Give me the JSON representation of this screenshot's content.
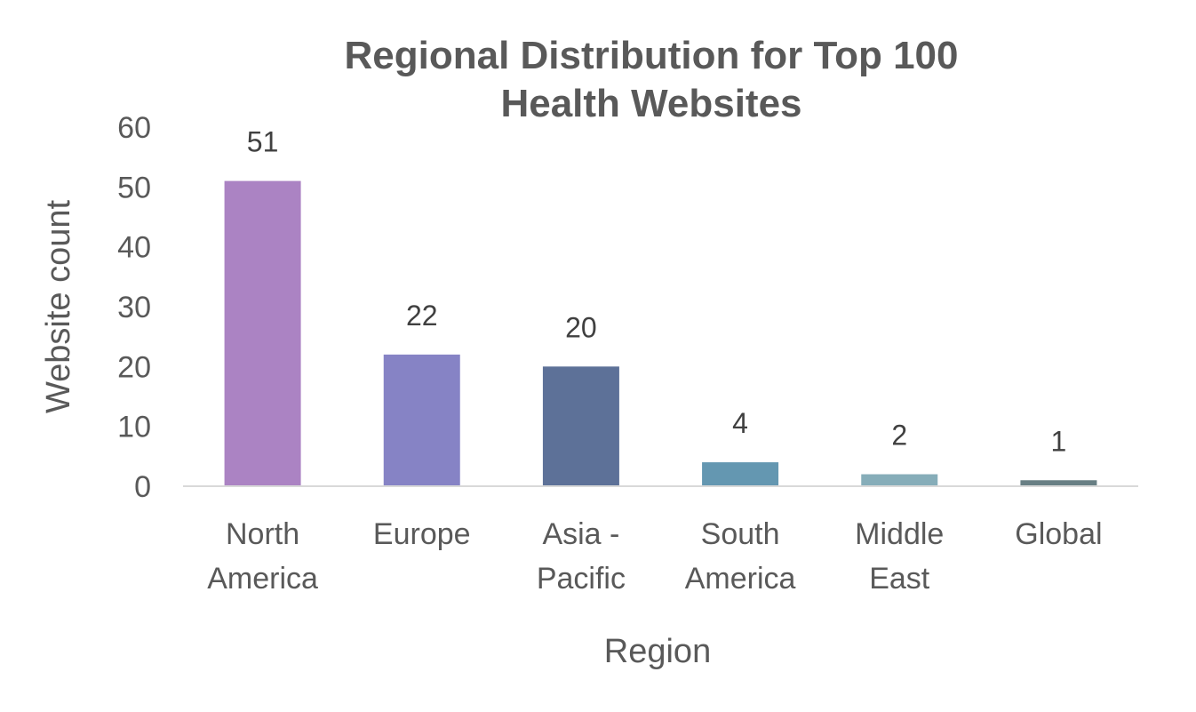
{
  "chart_data": {
    "type": "bar",
    "title": [
      "Regional Distribution for Top 100",
      "Health Websites"
    ],
    "xlabel": "Region",
    "ylabel": "Website count",
    "ylim": [
      0,
      60
    ],
    "yticks": [
      "0",
      "10",
      "20",
      "30",
      "40",
      "50",
      "60"
    ],
    "ytick_values": [
      0,
      10,
      20,
      30,
      40,
      50,
      60
    ],
    "grid": false,
    "legend": "none",
    "categories": [
      [
        "North",
        "America"
      ],
      [
        "Europe"
      ],
      [
        "Asia -",
        "Pacific"
      ],
      [
        "South",
        "America"
      ],
      [
        "Middle",
        "East"
      ],
      [
        "Global"
      ]
    ],
    "values": [
      51,
      22,
      20,
      4,
      2,
      1
    ],
    "data_labels": [
      "51",
      "22",
      "20",
      "4",
      "2",
      "1"
    ],
    "colors": [
      "#ab83c3",
      "#8683c5",
      "#5d7198",
      "#6497b1",
      "#86adb9",
      "#687f84"
    ],
    "axis_color": "#d9d9d9"
  }
}
